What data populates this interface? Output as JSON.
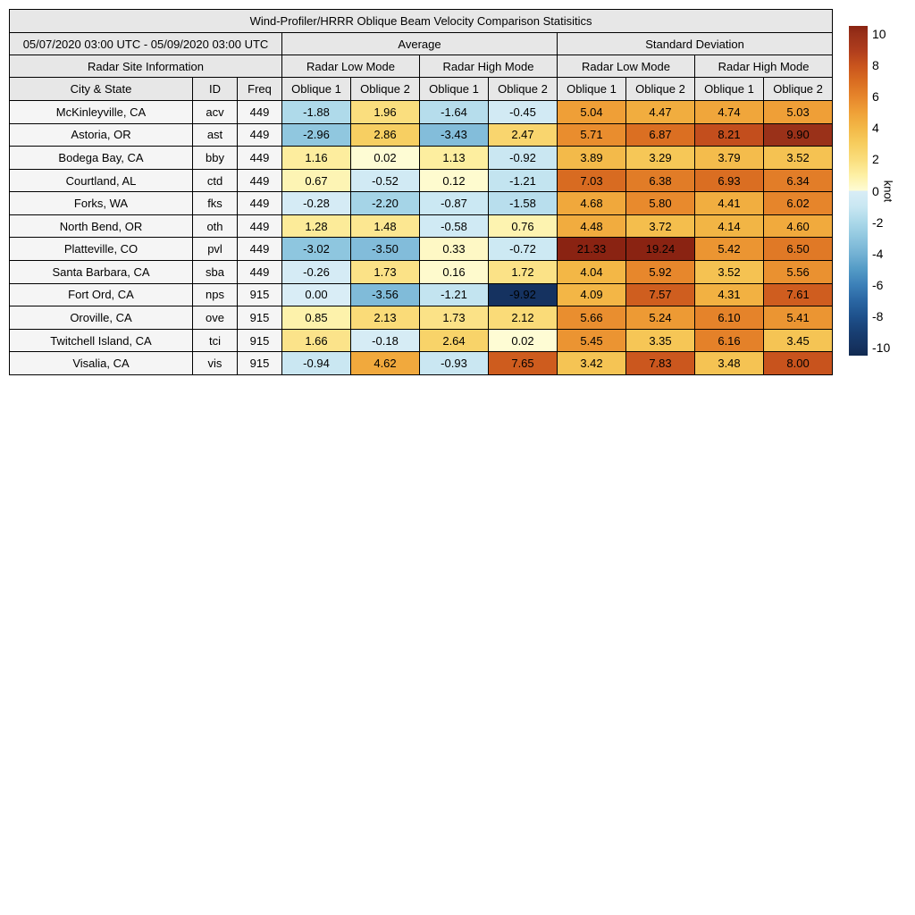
{
  "title": "Wind-Profiler/HRRR Oblique Beam Velocity Comparison Statisitics",
  "labels": {
    "date_range": "05/07/2020 03:00 UTC - 05/09/2020 03:00 UTC",
    "average": "Average",
    "standard_deviation": "Standard Deviation",
    "radar_site_info": "Radar Site Information",
    "radar_low_mode": "Radar Low Mode",
    "radar_high_mode": "Radar High Mode",
    "city_state": "City & State",
    "id": "ID",
    "freq": "Freq",
    "oblique1": "Oblique 1",
    "oblique2": "Oblique 2"
  },
  "colors": {
    "header_bg": "#e7e7e7",
    "label_bg": "#f5f5f5",
    "border": "#000000",
    "colormap_anchors": [
      [
        -10.5,
        "#112a50"
      ],
      [
        -10,
        "#15315e"
      ],
      [
        -9,
        "#183f73"
      ],
      [
        -8,
        "#1e518c"
      ],
      [
        -7,
        "#2a66a3"
      ],
      [
        -6,
        "#3c80b8"
      ],
      [
        -5,
        "#539bc6"
      ],
      [
        -4,
        "#74b2d4"
      ],
      [
        -3,
        "#8fc6df"
      ],
      [
        -2,
        "#abd8e9"
      ],
      [
        -1,
        "#c9e7f2"
      ],
      [
        0,
        "#d9edf6"
      ],
      [
        0.001,
        "#fefcd5"
      ],
      [
        1,
        "#fdf0a4"
      ],
      [
        2,
        "#fadd7c"
      ],
      [
        3,
        "#f7cd5e"
      ],
      [
        4,
        "#f3b847"
      ],
      [
        5,
        "#efa037"
      ],
      [
        6,
        "#e6852b"
      ],
      [
        7,
        "#d96c21"
      ],
      [
        8,
        "#c8531d"
      ],
      [
        9,
        "#ae3c1d"
      ],
      [
        10,
        "#983019"
      ],
      [
        10.5,
        "#8a2312"
      ]
    ]
  },
  "colorbar": {
    "unit": "knot",
    "ticks": [
      10,
      8,
      6,
      4,
      2,
      0,
      -2,
      -4,
      -6,
      -8,
      -10
    ],
    "vmin": -10.5,
    "vmax": 10.5
  },
  "chart_data": {
    "type": "heatmap",
    "title": "Wind-Profiler/HRRR Oblique Beam Velocity Comparison Statisitics",
    "period": "05/07/2020 03:00 UTC - 05/09/2020 03:00 UTC",
    "unit": "knot",
    "value_columns": [
      "Average Radar Low Mode Oblique 1",
      "Average Radar Low Mode Oblique 2",
      "Average Radar High Mode Oblique 1",
      "Average Radar High Mode Oblique 2",
      "Standard Deviation Radar Low Mode Oblique 1",
      "Standard Deviation Radar Low Mode Oblique 2",
      "Standard Deviation Radar High Mode Oblique 1",
      "Standard Deviation Radar High Mode Oblique 2"
    ],
    "color_range": [
      -10.5,
      10.5
    ],
    "rows": [
      {
        "city": "McKinleyville, CA",
        "id": "acv",
        "freq": 449,
        "values": [
          -1.88,
          1.96,
          -1.64,
          -0.45,
          5.04,
          4.47,
          4.74,
          5.03
        ]
      },
      {
        "city": "Astoria, OR",
        "id": "ast",
        "freq": 449,
        "values": [
          -2.96,
          2.86,
          -3.43,
          2.47,
          5.71,
          6.87,
          8.21,
          9.9
        ]
      },
      {
        "city": "Bodega Bay, CA",
        "id": "bby",
        "freq": 449,
        "values": [
          1.16,
          0.02,
          1.13,
          -0.92,
          3.89,
          3.29,
          3.79,
          3.52
        ]
      },
      {
        "city": "Courtland, AL",
        "id": "ctd",
        "freq": 449,
        "values": [
          0.67,
          -0.52,
          0.12,
          -1.21,
          7.03,
          6.38,
          6.93,
          6.34
        ]
      },
      {
        "city": "Forks, WA",
        "id": "fks",
        "freq": 449,
        "values": [
          -0.28,
          -2.2,
          -0.87,
          -1.58,
          4.68,
          5.8,
          4.41,
          6.02
        ]
      },
      {
        "city": "North Bend, OR",
        "id": "oth",
        "freq": 449,
        "values": [
          1.28,
          1.48,
          -0.58,
          0.76,
          4.48,
          3.72,
          4.14,
          4.6
        ]
      },
      {
        "city": "Platteville, CO",
        "id": "pvl",
        "freq": 449,
        "values": [
          -3.02,
          -3.5,
          0.33,
          -0.72,
          21.33,
          19.24,
          5.42,
          6.5
        ]
      },
      {
        "city": "Santa Barbara, CA",
        "id": "sba",
        "freq": 449,
        "values": [
          -0.26,
          1.73,
          0.16,
          1.72,
          4.04,
          5.92,
          3.52,
          5.56
        ]
      },
      {
        "city": "Fort Ord, CA",
        "id": "nps",
        "freq": 915,
        "values": [
          0.0,
          -3.56,
          -1.21,
          -9.92,
          4.09,
          7.57,
          4.31,
          7.61
        ]
      },
      {
        "city": "Oroville, CA",
        "id": "ove",
        "freq": 915,
        "values": [
          0.85,
          2.13,
          1.73,
          2.12,
          5.66,
          5.24,
          6.1,
          5.41
        ]
      },
      {
        "city": "Twitchell Island, CA",
        "id": "tci",
        "freq": 915,
        "values": [
          1.66,
          -0.18,
          2.64,
          0.02,
          5.45,
          3.35,
          6.16,
          3.45
        ]
      },
      {
        "city": "Visalia, CA",
        "id": "vis",
        "freq": 915,
        "values": [
          -0.94,
          4.62,
          -0.93,
          7.65,
          3.42,
          7.83,
          3.48,
          8.0
        ]
      }
    ]
  }
}
